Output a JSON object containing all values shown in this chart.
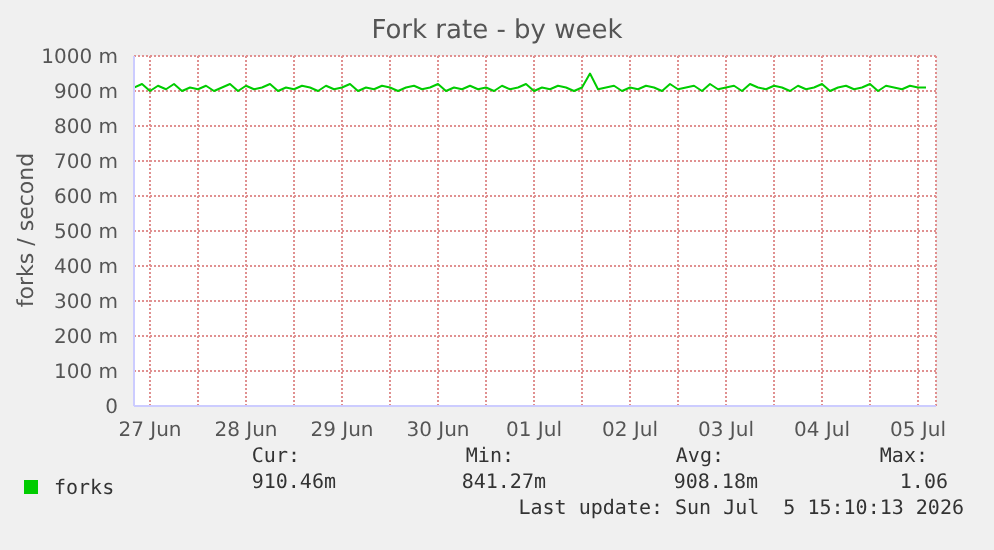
{
  "chart_data": {
    "type": "line",
    "title": "Fork rate - by week",
    "ylabel": "forks / second",
    "xlim": [
      "2026-06-27T08:00",
      "2026-07-05T16:30"
    ],
    "xticks": [
      {
        "value": "2026-06-27T12:00",
        "label": "27 Jun"
      },
      {
        "value": "2026-06-28T00:00",
        "label": null
      },
      {
        "value": "2026-06-28T12:00",
        "label": "28 Jun"
      },
      {
        "value": "2026-06-29T00:00",
        "label": null
      },
      {
        "value": "2026-06-29T12:00",
        "label": "29 Jun"
      },
      {
        "value": "2026-06-30T00:00",
        "label": null
      },
      {
        "value": "2026-06-30T12:00",
        "label": "30 Jun"
      },
      {
        "value": "2026-07-01T00:00",
        "label": null
      },
      {
        "value": "2026-07-01T12:00",
        "label": "01 Jul"
      },
      {
        "value": "2026-07-02T00:00",
        "label": null
      },
      {
        "value": "2026-07-02T12:00",
        "label": "02 Jul"
      },
      {
        "value": "2026-07-03T00:00",
        "label": null
      },
      {
        "value": "2026-07-03T12:00",
        "label": "03 Jul"
      },
      {
        "value": "2026-07-04T00:00",
        "label": null
      },
      {
        "value": "2026-07-04T12:00",
        "label": "04 Jul"
      },
      {
        "value": "2026-07-05T00:00",
        "label": null
      },
      {
        "value": "2026-07-05T12:00",
        "label": "05 Jul"
      }
    ],
    "ylim": [
      0,
      1000
    ],
    "yticks": [
      {
        "value": 0,
        "label": "0"
      },
      {
        "value": 100,
        "label": "100 m"
      },
      {
        "value": 200,
        "label": "200 m"
      },
      {
        "value": 300,
        "label": "300 m"
      },
      {
        "value": 400,
        "label": "400 m"
      },
      {
        "value": 500,
        "label": "500 m"
      },
      {
        "value": 600,
        "label": "600 m"
      },
      {
        "value": 700,
        "label": "700 m"
      },
      {
        "value": 800,
        "label": "800 m"
      },
      {
        "value": 900,
        "label": "900 m"
      },
      {
        "value": 1000,
        "label": "1000 m"
      }
    ],
    "grid": true,
    "legend": "bottom",
    "marker": "none",
    "x": [
      "2026-06-27T08:00",
      "2026-06-27T10:00",
      "2026-06-27T12:00",
      "2026-06-27T14:00",
      "2026-06-27T16:00",
      "2026-06-27T18:00",
      "2026-06-27T20:00",
      "2026-06-27T22:00",
      "2026-06-28T00:00",
      "2026-06-28T02:00",
      "2026-06-28T04:00",
      "2026-06-28T06:00",
      "2026-06-28T08:00",
      "2026-06-28T10:00",
      "2026-06-28T12:00",
      "2026-06-28T14:00",
      "2026-06-28T16:00",
      "2026-06-28T18:00",
      "2026-06-28T20:00",
      "2026-06-28T22:00",
      "2026-06-29T00:00",
      "2026-06-29T02:00",
      "2026-06-29T04:00",
      "2026-06-29T06:00",
      "2026-06-29T08:00",
      "2026-06-29T10:00",
      "2026-06-29T12:00",
      "2026-06-29T14:00",
      "2026-06-29T16:00",
      "2026-06-29T18:00",
      "2026-06-29T20:00",
      "2026-06-29T22:00",
      "2026-06-30T00:00",
      "2026-06-30T02:00",
      "2026-06-30T04:00",
      "2026-06-30T06:00",
      "2026-06-30T08:00",
      "2026-06-30T10:00",
      "2026-06-30T12:00",
      "2026-06-30T14:00",
      "2026-06-30T16:00",
      "2026-06-30T18:00",
      "2026-06-30T20:00",
      "2026-06-30T22:00",
      "2026-07-01T00:00",
      "2026-07-01T02:00",
      "2026-07-01T04:00",
      "2026-07-01T06:00",
      "2026-07-01T08:00",
      "2026-07-01T10:00",
      "2026-07-01T12:00",
      "2026-07-01T14:00",
      "2026-07-01T16:00",
      "2026-07-01T18:00",
      "2026-07-01T20:00",
      "2026-07-01T22:00",
      "2026-07-02T00:00",
      "2026-07-02T02:00",
      "2026-07-02T04:00",
      "2026-07-02T06:00",
      "2026-07-02T08:00",
      "2026-07-02T10:00",
      "2026-07-02T12:00",
      "2026-07-02T14:00",
      "2026-07-02T16:00",
      "2026-07-02T18:00",
      "2026-07-02T20:00",
      "2026-07-02T22:00",
      "2026-07-03T00:00",
      "2026-07-03T02:00",
      "2026-07-03T04:00",
      "2026-07-03T06:00",
      "2026-07-03T08:00",
      "2026-07-03T10:00",
      "2026-07-03T12:00",
      "2026-07-03T14:00",
      "2026-07-03T16:00",
      "2026-07-03T18:00",
      "2026-07-03T20:00",
      "2026-07-03T22:00",
      "2026-07-04T00:00",
      "2026-07-04T02:00",
      "2026-07-04T04:00",
      "2026-07-04T06:00",
      "2026-07-04T08:00",
      "2026-07-04T10:00",
      "2026-07-04T12:00",
      "2026-07-04T14:00",
      "2026-07-04T16:00",
      "2026-07-04T18:00",
      "2026-07-04T20:00",
      "2026-07-04T22:00",
      "2026-07-05T00:00",
      "2026-07-05T02:00",
      "2026-07-05T04:00",
      "2026-07-05T06:00",
      "2026-07-05T08:00",
      "2026-07-05T10:00",
      "2026-07-05T12:00",
      "2026-07-05T14:00"
    ],
    "series": [
      {
        "name": "forks",
        "color": "#00cc00",
        "values": [
          910,
          920,
          900,
          915,
          905,
          920,
          900,
          910,
          905,
          915,
          900,
          910,
          920,
          900,
          915,
          905,
          910,
          920,
          900,
          910,
          905,
          915,
          910,
          900,
          915,
          905,
          910,
          920,
          900,
          910,
          905,
          915,
          910,
          900,
          910,
          915,
          905,
          910,
          920,
          900,
          910,
          905,
          915,
          905,
          910,
          900,
          915,
          905,
          910,
          920,
          900,
          910,
          905,
          915,
          910,
          900,
          910,
          950,
          905,
          910,
          915,
          900,
          910,
          905,
          915,
          910,
          900,
          920,
          905,
          910,
          915,
          900,
          920,
          905,
          910,
          915,
          900,
          920,
          910,
          905,
          915,
          910,
          900,
          915,
          905,
          910,
          920,
          900,
          910,
          915,
          905,
          910,
          920,
          900,
          915,
          910,
          905,
          915,
          910,
          910
        ]
      }
    ],
    "annotations": [
      "Cur:",
      "Min:",
      "Avg:",
      "Max:",
      "910.46m",
      "841.27m",
      "908.18m",
      "1.06",
      "Last update: Sun Jul  5 15:10:13 2026"
    ]
  }
}
